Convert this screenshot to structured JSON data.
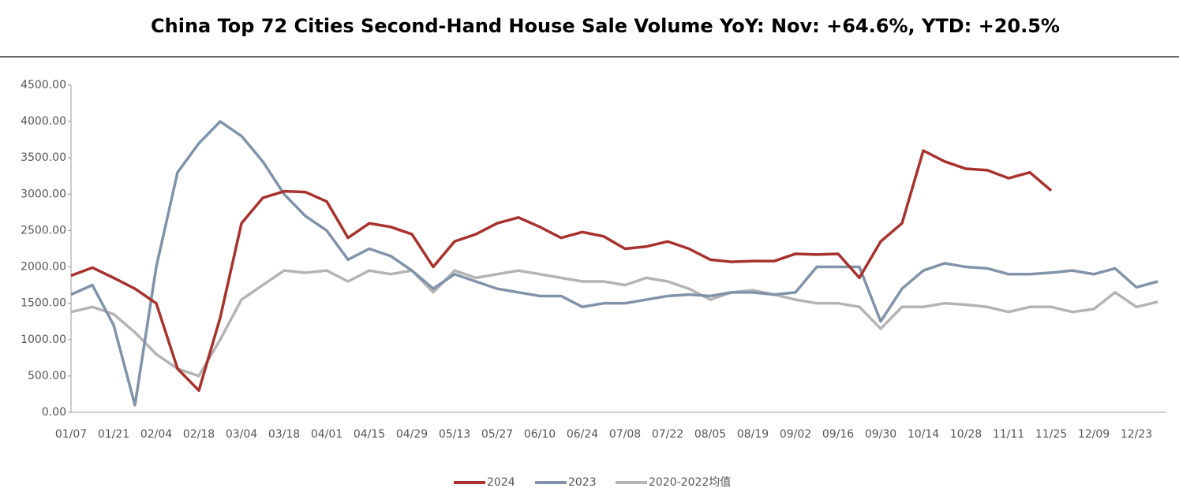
{
  "chart_data": {
    "type": "line",
    "title": "China Top 72 Cities Second-Hand House Sale Volume YoY: Nov: +64.6%, YTD: +20.5%",
    "categories": [
      "01/07",
      null,
      "01/21",
      null,
      "02/04",
      null,
      "02/18",
      null,
      "03/04",
      null,
      "03/18",
      null,
      "04/01",
      null,
      "04/15",
      null,
      "04/29",
      null,
      "05/13",
      null,
      "05/27",
      null,
      "06/10",
      null,
      "06/24",
      null,
      "07/08",
      null,
      "07/22",
      null,
      "08/05",
      null,
      "08/19",
      null,
      "09/02",
      null,
      "09/16",
      null,
      "09/30",
      null,
      "10/14",
      null,
      "10/28",
      null,
      "11/11",
      null,
      "11/25",
      null,
      "12/09",
      null,
      "12/23",
      null
    ],
    "series": [
      {
        "name": "2024",
        "color": "#a8322d",
        "values": [
          1880,
          1990,
          1850,
          1700,
          1500,
          600,
          300,
          1300,
          2600,
          2950,
          3040,
          3030,
          2900,
          2400,
          2600,
          2550,
          2450,
          2000,
          2350,
          2450,
          2600,
          2680,
          2550,
          2400,
          2480,
          2420,
          2250,
          2280,
          2350,
          2250,
          2100,
          2070,
          2080,
          2080,
          2180,
          2170,
          2180,
          1850,
          2350,
          2600,
          3600,
          3450,
          3350,
          3330,
          3220,
          3300,
          3050,
          null,
          null,
          null,
          null,
          null
        ]
      },
      {
        "name": "2023",
        "color": "#8193a8",
        "values": [
          1620,
          1750,
          1200,
          100,
          2000,
          3300,
          3700,
          4000,
          3800,
          3450,
          3000,
          2700,
          2500,
          2100,
          2250,
          2150,
          1950,
          1700,
          1900,
          1800,
          1700,
          1650,
          1600,
          1600,
          1450,
          1500,
          1500,
          1550,
          1600,
          1620,
          1600,
          1650,
          1650,
          1620,
          1650,
          2000,
          2000,
          2000,
          1250,
          1700,
          1950,
          2050,
          2000,
          1980,
          1900,
          1900,
          1920,
          1950,
          1900,
          1980,
          1720,
          1800
        ]
      },
      {
        "name": "2020-2022均值",
        "color": "#b4b4b4",
        "values": [
          1380,
          1450,
          1350,
          1100,
          800,
          600,
          500,
          1000,
          1550,
          1750,
          1950,
          1920,
          1950,
          1800,
          1950,
          1900,
          1950,
          1650,
          1950,
          1850,
          1900,
          1950,
          1900,
          1850,
          1800,
          1800,
          1750,
          1850,
          1800,
          1700,
          1550,
          1650,
          1680,
          1620,
          1550,
          1500,
          1500,
          1450,
          1150,
          1450,
          1450,
          1500,
          1480,
          1450,
          1380,
          1450,
          1450,
          1380,
          1420,
          1650,
          1450,
          1520
        ]
      }
    ],
    "ylim": [
      0,
      4500
    ],
    "yticks": [
      {
        "value": 0,
        "label": "0.00"
      },
      {
        "value": 500,
        "label": "500.00"
      },
      {
        "value": 1000,
        "label": "1000.00"
      },
      {
        "value": 1500,
        "label": "1500.00"
      },
      {
        "value": 2000,
        "label": "2000.00"
      },
      {
        "value": 2500,
        "label": "2500.00"
      },
      {
        "value": 3000,
        "label": "3000.00"
      },
      {
        "value": 3500,
        "label": "3500.00"
      },
      {
        "value": 4000,
        "label": "4000.00"
      },
      {
        "value": 4500,
        "label": "4500.00"
      }
    ],
    "grid": false,
    "legend": "bottom"
  }
}
